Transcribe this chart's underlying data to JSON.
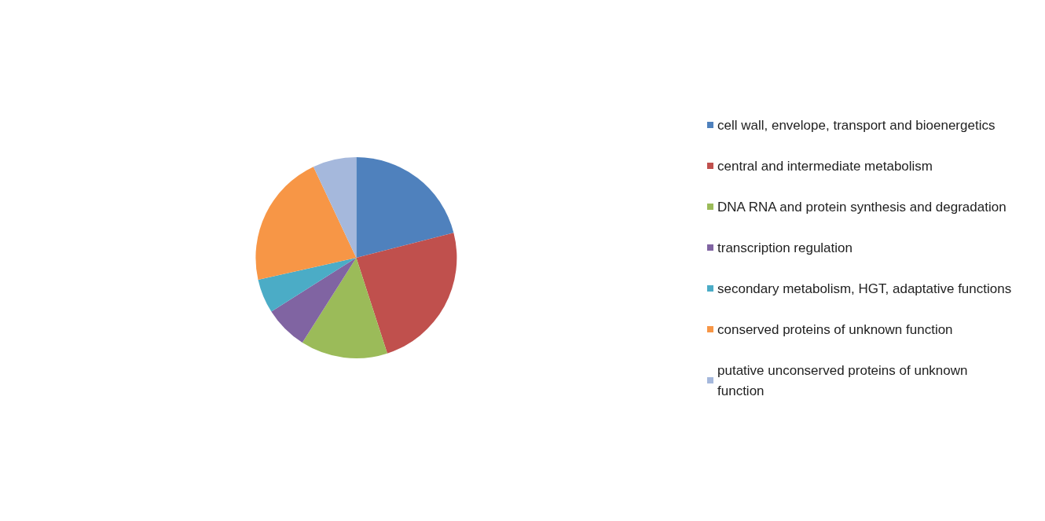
{
  "chart_data": {
    "type": "pie",
    "categories": [
      "cell wall, envelope, transport and bioenergetics",
      "central and intermediate metabolism",
      "DNA RNA and protein synthesis and degradation",
      "transcription regulation",
      "secondary metabolism, HGT, adaptative functions",
      "conserved proteins of unknown function",
      "putative unconserved proteins of unknown function"
    ],
    "values": [
      21,
      24,
      14,
      7,
      5.5,
      21.5,
      7
    ],
    "colors": [
      "#4f81bd",
      "#c0504d",
      "#9bbb59",
      "#8064a2",
      "#4bacc6",
      "#f79646",
      "#a5b8dc"
    ],
    "legend": "right"
  }
}
